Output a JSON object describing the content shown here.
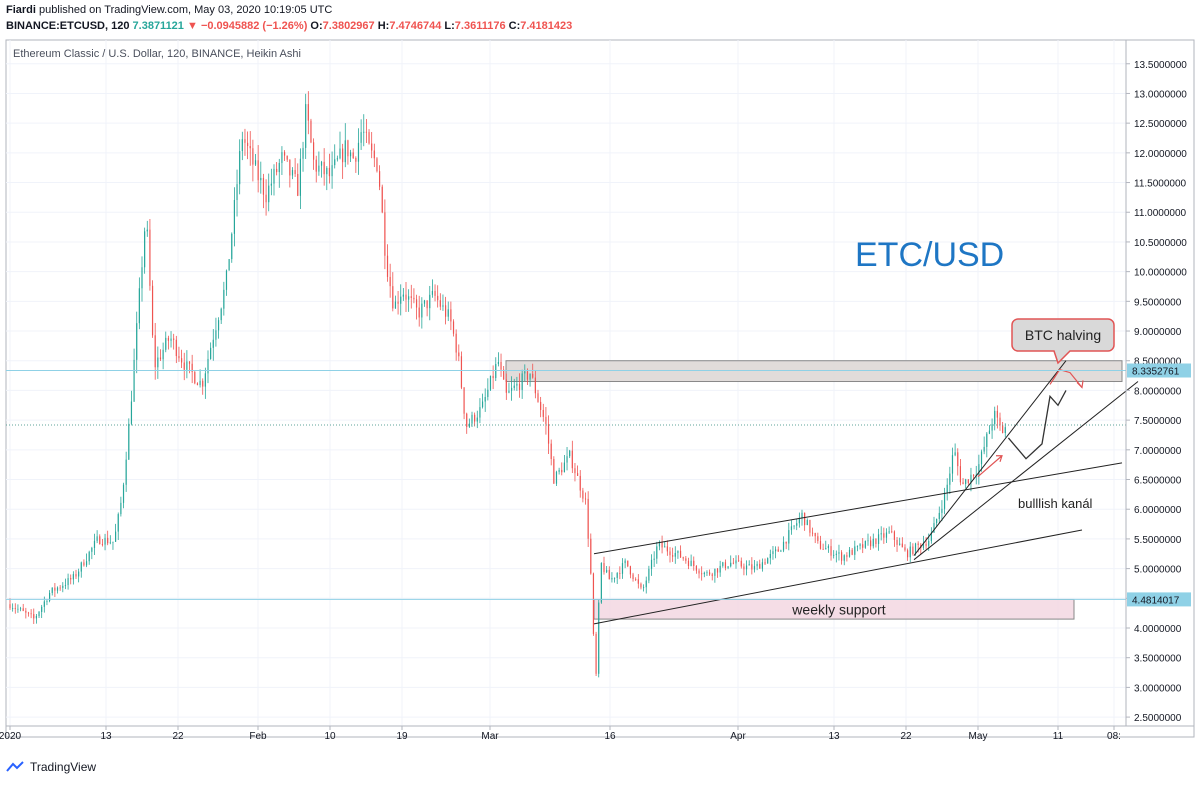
{
  "header": {
    "author": "Fiardi",
    "published_text": "published on TradingView.com, May 03, 2020 10:19:05 UTC",
    "symbol": "BINANCE:ETCUSD, 120",
    "last": "7.3871121",
    "change": "−0.0945882 (−1.26%)",
    "o_label": "O:",
    "o_value": "7.3802967",
    "h_label": "H:",
    "h_value": "7.4746744",
    "l_label": "L:",
    "l_value": "7.3611176",
    "c_label": "C:",
    "c_value": "7.4181423"
  },
  "chart_data": {
    "type": "candlestick",
    "title": "Ethereum Classic / U.S. Dollar, 120, BINANCE, Heikin Ashi",
    "watermark": "ETC/USD",
    "ylim": [
      2.35,
      13.9
    ],
    "y_ticks": [
      "13.5000000",
      "13.0000000",
      "12.5000000",
      "12.0000000",
      "11.5000000",
      "11.0000000",
      "10.5000000",
      "10.0000000",
      "9.5000000",
      "9.0000000",
      "8.5000000",
      "8.0000000",
      "7.5000000",
      "7.0000000",
      "6.5000000",
      "6.0000000",
      "5.5000000",
      "5.0000000",
      "4.5000000",
      "4.0000000",
      "3.5000000",
      "3.0000000",
      "2.5000000"
    ],
    "x_ticks": [
      {
        "label": "2020",
        "day": 0
      },
      {
        "label": "13",
        "day": 12
      },
      {
        "label": "22",
        "day": 21
      },
      {
        "label": "Feb",
        "day": 31
      },
      {
        "label": "10",
        "day": 40
      },
      {
        "label": "19",
        "day": 49
      },
      {
        "label": "Mar",
        "day": 60
      },
      {
        "label": "16",
        "day": 75
      },
      {
        "label": "Apr",
        "day": 91
      },
      {
        "label": "13",
        "day": 103
      },
      {
        "label": "22",
        "day": 112
      },
      {
        "label": "May",
        "day": 121
      },
      {
        "label": "11",
        "day": 131
      },
      {
        "label": "08:",
        "day": 138
      }
    ],
    "xlim_days": [
      -0.5,
      139.5
    ],
    "price_path": [
      [
        0,
        4.4
      ],
      [
        3,
        4.15
      ],
      [
        5,
        4.6
      ],
      [
        8,
        4.85
      ],
      [
        11,
        5.5
      ],
      [
        13,
        5.45
      ],
      [
        14,
        6.2
      ],
      [
        15,
        7.6
      ],
      [
        17,
        11.0
      ],
      [
        18,
        8.4
      ],
      [
        20,
        8.9
      ],
      [
        22,
        8.4
      ],
      [
        24,
        8.1
      ],
      [
        25,
        8.7
      ],
      [
        27,
        9.8
      ],
      [
        28,
        11.0
      ],
      [
        29,
        12.3
      ],
      [
        31,
        11.6
      ],
      [
        32,
        11.3
      ],
      [
        34,
        11.9
      ],
      [
        36,
        11.4
      ],
      [
        37,
        12.7
      ],
      [
        38,
        11.8
      ],
      [
        40,
        11.6
      ],
      [
        42,
        12.1
      ],
      [
        43,
        11.9
      ],
      [
        44,
        12.4
      ],
      [
        45,
        12.0
      ],
      [
        46,
        11.8
      ],
      [
        47,
        10.2
      ],
      [
        48,
        9.4
      ],
      [
        49,
        9.7
      ],
      [
        51,
        9.3
      ],
      [
        53,
        9.6
      ],
      [
        55,
        9.2
      ],
      [
        56,
        8.6
      ],
      [
        57,
        7.4
      ],
      [
        59,
        7.7
      ],
      [
        61,
        8.5
      ],
      [
        62,
        7.9
      ],
      [
        65,
        8.3
      ],
      [
        67,
        7.4
      ],
      [
        68,
        6.5
      ],
      [
        70,
        6.9
      ],
      [
        72,
        6.1
      ],
      [
        72.6,
        4.9
      ],
      [
        73.2,
        3.0
      ],
      [
        73.8,
        5.1
      ],
      [
        75,
        4.8
      ],
      [
        77,
        5.1
      ],
      [
        79,
        4.6
      ],
      [
        81,
        5.4
      ],
      [
        84,
        5.2
      ],
      [
        87,
        4.9
      ],
      [
        90,
        5.1
      ],
      [
        93,
        5.0
      ],
      [
        96,
        5.3
      ],
      [
        99,
        5.9
      ],
      [
        101,
        5.4
      ],
      [
        104,
        5.2
      ],
      [
        107,
        5.4
      ],
      [
        110,
        5.6
      ],
      [
        112,
        5.25
      ],
      [
        115,
        5.5
      ],
      [
        117,
        6.3
      ],
      [
        118,
        7.0
      ],
      [
        119,
        6.4
      ],
      [
        121,
        6.7
      ],
      [
        123,
        7.6
      ],
      [
        124,
        7.3
      ],
      [
        124.5,
        7.4
      ]
    ],
    "last_price": 7.4181423,
    "price_labels": [
      {
        "value": 8.3352761,
        "text": "8.3352761"
      },
      {
        "value": 4.4814017,
        "text": "4.4814017"
      }
    ],
    "annotations": {
      "btc_halving": "BTC halving",
      "bullish_channel": "bulllish kanál",
      "weekly_support": "weekly support"
    },
    "zones": [
      {
        "name": "resistance",
        "y": [
          8.15,
          8.5
        ],
        "x_days": [
          62,
          139
        ],
        "color": "#dcd6d4"
      },
      {
        "name": "weekly-support",
        "y": [
          4.15,
          4.48
        ],
        "x_days": [
          73,
          133
        ],
        "color": "#f3d7e2"
      }
    ],
    "trendlines": [
      {
        "name": "channel-upper",
        "from": [
          73,
          5.25
        ],
        "to": [
          139,
          6.78
        ]
      },
      {
        "name": "channel-lower",
        "from": [
          73,
          4.07
        ],
        "to": [
          134,
          5.65
        ]
      },
      {
        "name": "steep-upper",
        "from": [
          113,
          5.22
        ],
        "to": [
          132,
          8.5
        ]
      },
      {
        "name": "steep-lower",
        "from": [
          113,
          5.15
        ],
        "to": [
          141,
          8.15
        ]
      }
    ],
    "projection": [
      [
        124.8,
        7.2
      ],
      [
        127,
        6.85
      ],
      [
        129,
        7.1
      ],
      [
        130,
        7.9
      ],
      [
        131,
        7.75
      ],
      [
        132,
        8.0
      ]
    ],
    "halving_arrow": [
      [
        130,
        8.1
      ],
      [
        131.2,
        8.35
      ],
      [
        132.5,
        8.3
      ],
      [
        134,
        8.05
      ]
    ],
    "colors": {
      "up": "#26a69a",
      "down": "#ef5350",
      "axis_label_bg": "#8fd1e6",
      "watermark": "#1e76c4",
      "annotation": "#e15555",
      "price_line": "#5fa39a"
    }
  },
  "footer": {
    "brand": "TradingView"
  }
}
